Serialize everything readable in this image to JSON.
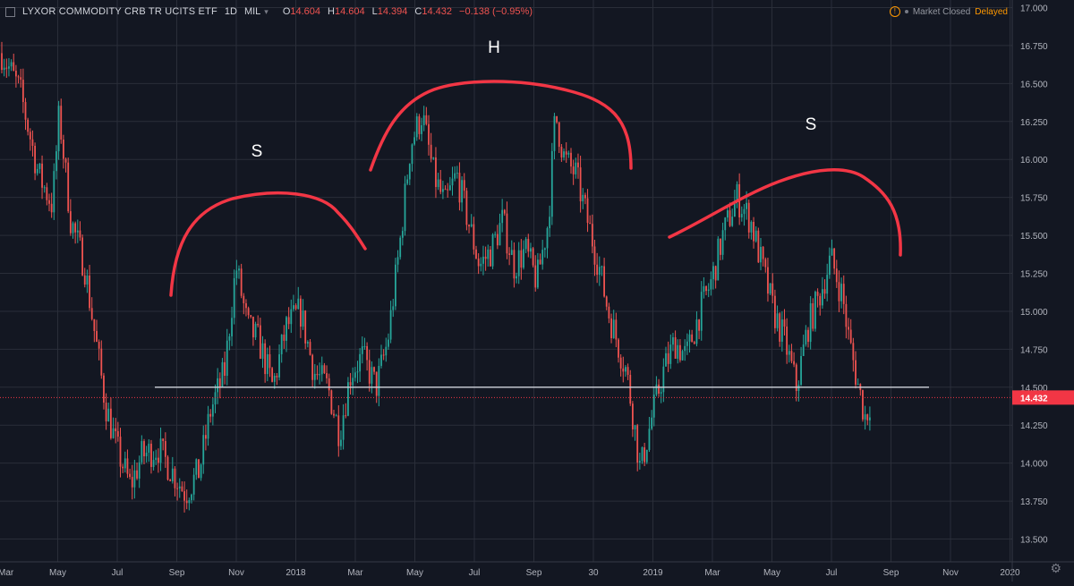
{
  "header": {
    "symbol": "LYXOR COMMODITY CRB TR UCITS ETF",
    "interval": "1D",
    "exchange": "MIL",
    "ohlc": [
      {
        "label": "O",
        "value": "14.604"
      },
      {
        "label": "H",
        "value": "14.604"
      },
      {
        "label": "L",
        "value": "14.394"
      },
      {
        "label": "C",
        "value": "14.432"
      }
    ],
    "change": "−0.138 (−0.95%)",
    "status_text": "Market Closed",
    "delayed_text": "Delayed",
    "alert_glyph": "!"
  },
  "settings_icon": "gear-icon",
  "annotations": [
    {
      "label": "S",
      "color": "#ffffff"
    },
    {
      "label": "H",
      "color": "#ffffff"
    },
    {
      "label": "S",
      "color": "#ffffff"
    }
  ],
  "colors": {
    "background": "#131722",
    "grid": "#2a2e39",
    "up": "#26a69a",
    "down": "#ef5350",
    "neckline": "#d1d4dc",
    "arc": "#f23645",
    "price_marker": "#f23645",
    "axis_text": "#b2b5be"
  },
  "chart_data": {
    "type": "candlestick",
    "price_axis": {
      "ticks": [
        "17.000",
        "16.750",
        "16.500",
        "16.250",
        "16.000",
        "15.750",
        "15.500",
        "15.250",
        "15.000",
        "14.750",
        "14.500",
        "14.250",
        "14.000",
        "13.750",
        "13.500"
      ],
      "ylim": [
        13.35,
        17.05
      ],
      "last_price": "14.432"
    },
    "time_axis": {
      "ticks": [
        "Mar",
        "May",
        "Jul",
        "Sep",
        "Nov",
        "2018",
        "Mar",
        "May",
        "Jul",
        "Sep",
        "30",
        "2019",
        "Mar",
        "May",
        "Jul",
        "Sep",
        "Nov",
        "2020"
      ]
    },
    "neckline": {
      "value": 14.5
    },
    "path": [
      [
        0,
        16.7
      ],
      [
        0.8,
        16.45
      ],
      [
        1.6,
        15.9
      ],
      [
        2.2,
        15.7
      ],
      [
        2.5,
        16.3
      ],
      [
        3.0,
        15.6
      ],
      [
        3.6,
        15.3
      ],
      [
        4.1,
        14.8
      ],
      [
        4.5,
        14.4
      ],
      [
        5.0,
        14.1
      ],
      [
        5.6,
        13.85
      ],
      [
        6.1,
        14.05
      ],
      [
        6.8,
        14.1
      ],
      [
        7.4,
        13.95
      ],
      [
        8.0,
        13.8
      ],
      [
        8.6,
        13.95
      ],
      [
        9.1,
        14.35
      ],
      [
        9.7,
        14.6
      ],
      [
        10.2,
        15.3
      ],
      [
        10.7,
        14.9
      ],
      [
        11.2,
        14.8
      ],
      [
        11.8,
        14.5
      ],
      [
        12.4,
        14.9
      ],
      [
        13.0,
        15.0
      ],
      [
        13.6,
        14.6
      ],
      [
        14.2,
        14.5
      ],
      [
        14.7,
        14.2
      ],
      [
        15.2,
        14.6
      ],
      [
        15.7,
        14.7
      ],
      [
        16.3,
        14.5
      ],
      [
        16.8,
        14.8
      ],
      [
        17.3,
        15.4
      ],
      [
        17.8,
        16.1
      ],
      [
        18.3,
        16.3
      ],
      [
        18.8,
        15.9
      ],
      [
        19.3,
        15.7
      ],
      [
        19.8,
        15.9
      ],
      [
        20.3,
        15.6
      ],
      [
        20.8,
        15.3
      ],
      [
        21.3,
        15.4
      ],
      [
        21.8,
        15.6
      ],
      [
        22.3,
        15.3
      ],
      [
        22.8,
        15.4
      ],
      [
        23.3,
        15.2
      ],
      [
        23.8,
        15.6
      ],
      [
        24.1,
        16.3
      ],
      [
        24.5,
        16.0
      ],
      [
        25.0,
        15.9
      ],
      [
        25.5,
        15.6
      ],
      [
        26.0,
        15.3
      ],
      [
        26.4,
        15.0
      ],
      [
        26.8,
        14.8
      ],
      [
        27.2,
        14.6
      ],
      [
        27.5,
        14.3
      ],
      [
        27.8,
        13.95
      ],
      [
        28.3,
        14.3
      ],
      [
        28.8,
        14.6
      ],
      [
        29.3,
        14.8
      ],
      [
        29.8,
        14.7
      ],
      [
        30.4,
        15.0
      ],
      [
        30.9,
        15.2
      ],
      [
        31.4,
        15.5
      ],
      [
        32.0,
        15.75
      ],
      [
        32.6,
        15.6
      ],
      [
        33.1,
        15.3
      ],
      [
        33.6,
        15.0
      ],
      [
        34.1,
        14.8
      ],
      [
        34.6,
        14.5
      ],
      [
        35.1,
        14.9
      ],
      [
        35.6,
        15.1
      ],
      [
        36.1,
        15.35
      ],
      [
        36.6,
        15.1
      ],
      [
        36.9,
        14.8
      ],
      [
        37.3,
        14.5
      ],
      [
        37.6,
        14.3
      ],
      [
        37.8,
        14.4
      ]
    ]
  }
}
